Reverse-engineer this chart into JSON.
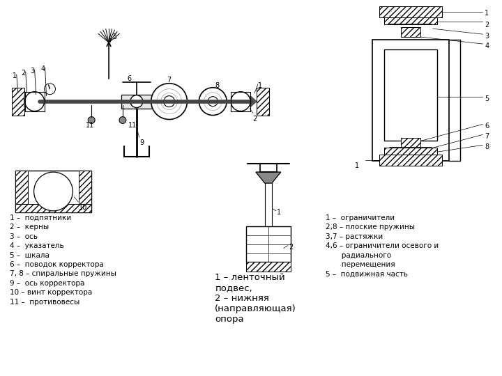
{
  "bg_color": "#ffffff",
  "fig_width": 7.2,
  "fig_height": 5.4,
  "dpi": 100,
  "left_legend": [
    "1 –  подпятники",
    "2 –  керны",
    "3 –  ось",
    "4 –  указатель",
    "5 –  шкала",
    "6 –  поводок корректора",
    "7, 8 – спиральные пружины",
    "9 –  ось корректора",
    "10 – винт корректора",
    "11 –  противовесы"
  ],
  "center_legend": [
    "1 – ленточный",
    "подвес,",
    "2 – нижняя",
    "(направляющая)",
    "опора"
  ],
  "right_legend": [
    "1 –  ограничители",
    "2,8 – плоские пружины",
    "3,7 – растяжки",
    "4,6 – ограничители осевого и",
    "       радиального",
    "       перемещения",
    "5 –  подвижная часть"
  ],
  "font_size": 7.5,
  "line_color": "#000000"
}
